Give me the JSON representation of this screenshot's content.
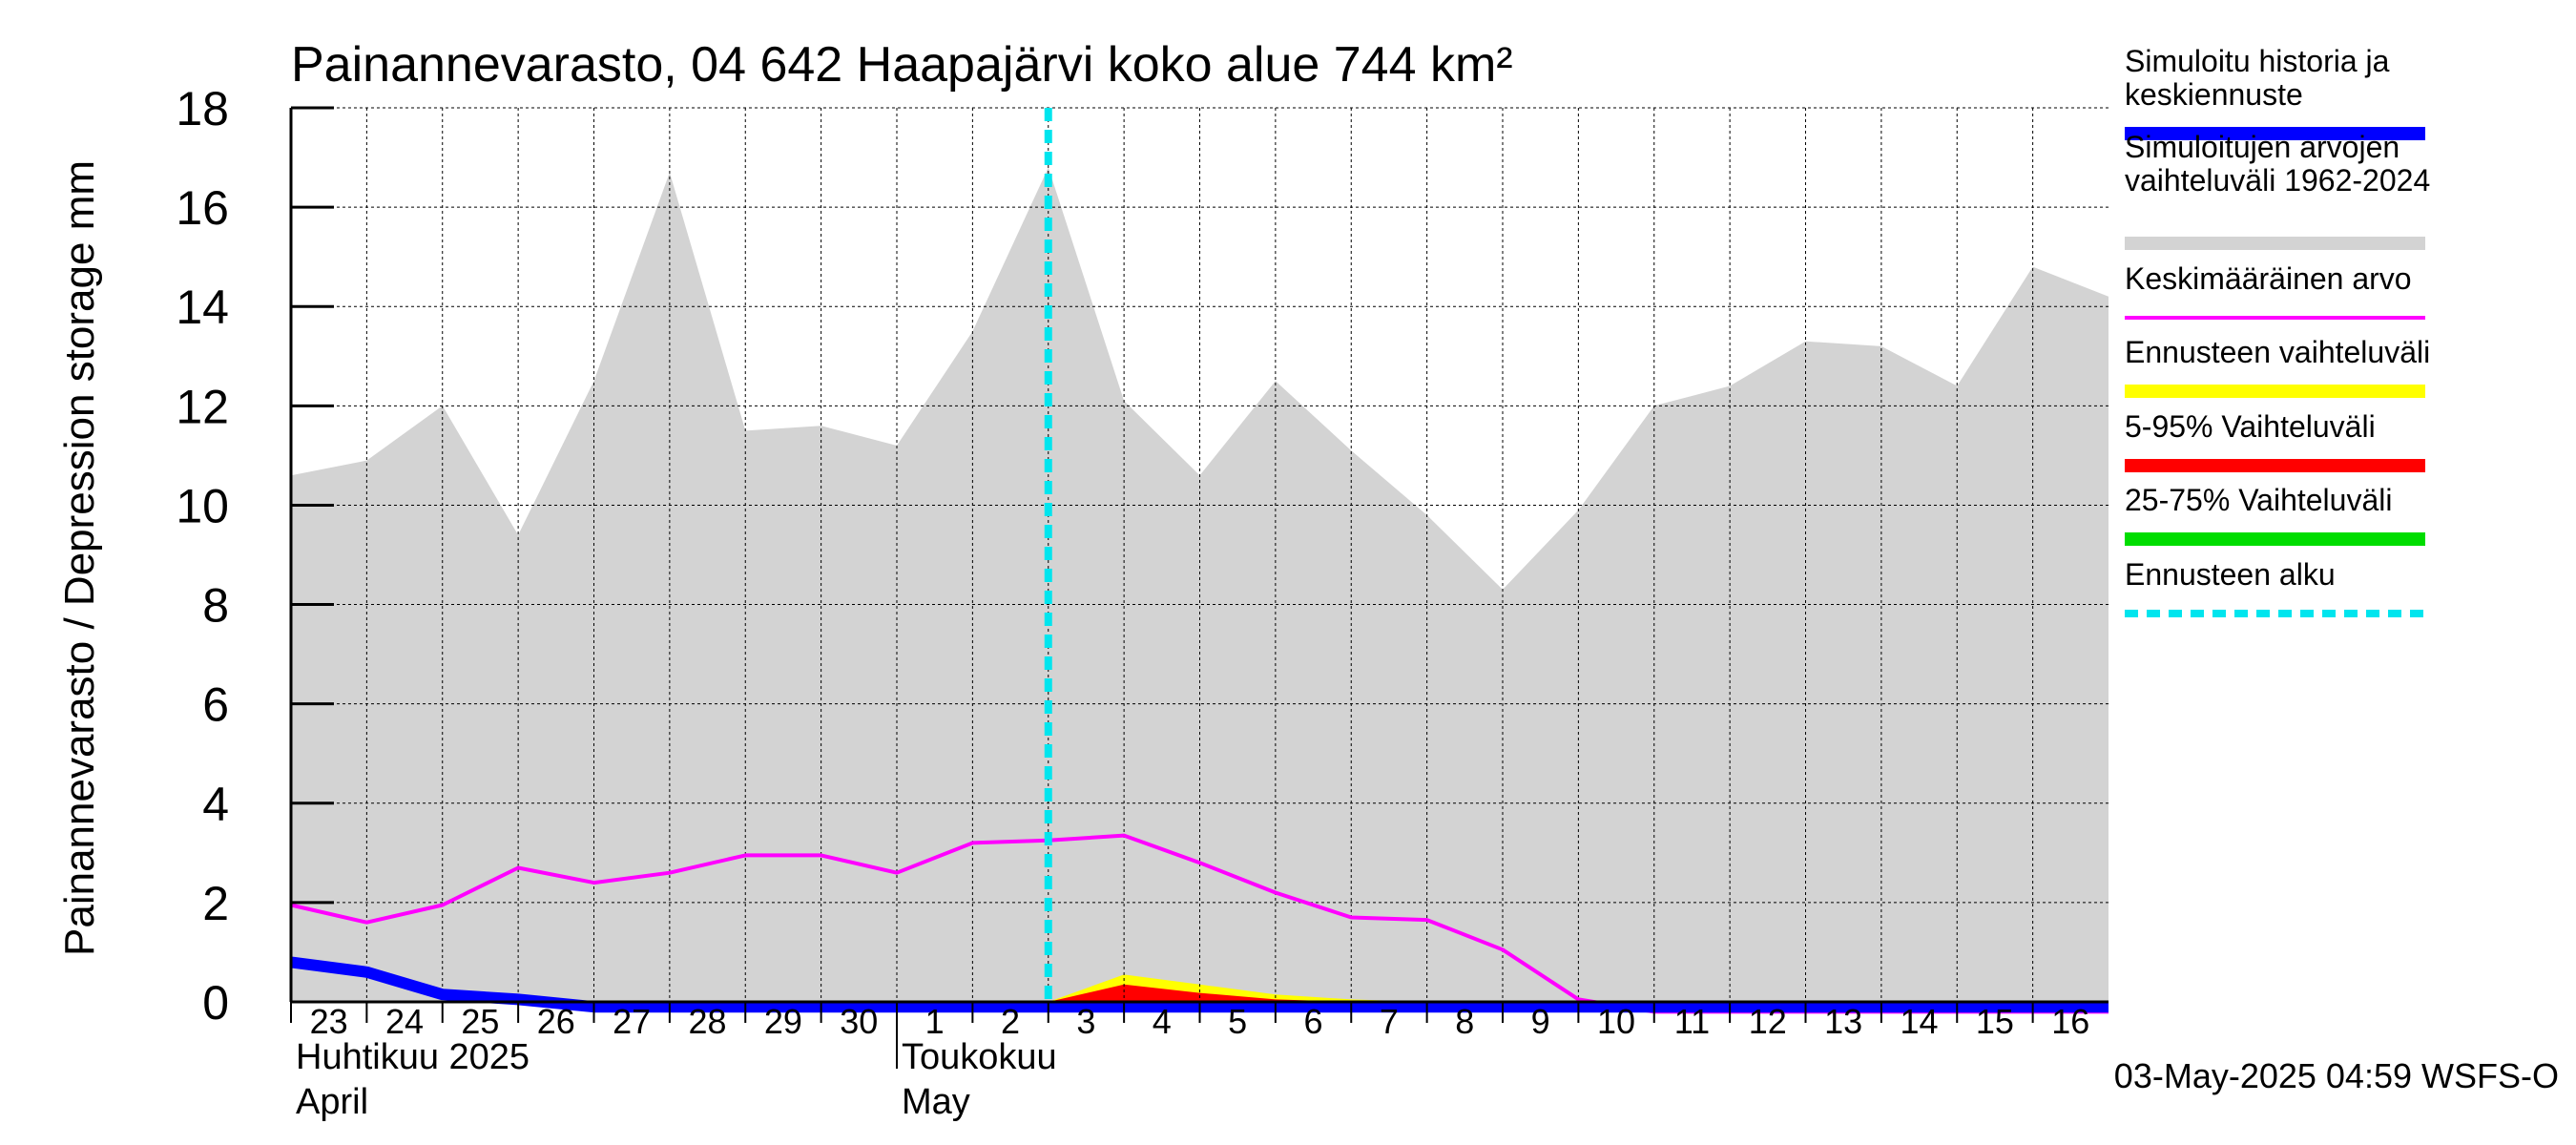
{
  "chart_data": {
    "type": "area",
    "title": "Painannevarasto, 04 642 Haapajärvi koko alue 744 km²",
    "ylabel": "Painannevarasto / Depression storage    mm",
    "ylim": [
      0,
      18
    ],
    "y_ticks": [
      "0",
      "2",
      "4",
      "6",
      "8",
      "10",
      "12",
      "14",
      "16",
      "18"
    ],
    "grid": true,
    "legend_position": "right",
    "x": [
      "2025-04-23",
      "2025-04-24",
      "2025-04-25",
      "2025-04-26",
      "2025-04-27",
      "2025-04-28",
      "2025-04-29",
      "2025-04-30",
      "2025-05-01",
      "2025-05-02",
      "2025-05-03",
      "2025-05-04",
      "2025-05-05",
      "2025-05-06",
      "2025-05-07",
      "2025-05-08",
      "2025-05-09",
      "2025-05-10",
      "2025-05-11",
      "2025-05-12",
      "2025-05-13",
      "2025-05-14",
      "2025-05-15",
      "2025-05-16",
      "2025-05-17"
    ],
    "x_tick_labels": [
      "23",
      "24",
      "25",
      "26",
      "27",
      "28",
      "29",
      "30",
      "1",
      "2",
      "3",
      "4",
      "5",
      "6",
      "7",
      "8",
      "9",
      "10",
      "11",
      "12",
      "13",
      "14",
      "15",
      "16"
    ],
    "month_labels": [
      {
        "line1": "Huhtikuu  2025",
        "line2": "April"
      },
      {
        "line1": "Toukokuu",
        "line2": "May"
      }
    ],
    "forecast_start": "2025-05-03",
    "series": [
      {
        "name": "Simuloitujen arvojen vaihteluväli 1962-2024",
        "kind": "band",
        "color": "#d3d3d3",
        "lower": [
          0,
          0,
          0,
          0,
          0,
          0,
          0,
          0,
          0,
          0,
          0,
          0,
          0,
          0,
          0,
          0,
          0,
          0,
          0,
          0,
          0,
          0,
          0,
          0,
          0
        ],
        "upper": [
          10.6,
          10.9,
          12.0,
          9.4,
          12.5,
          16.7,
          11.5,
          11.6,
          11.2,
          13.5,
          16.8,
          12.1,
          10.6,
          12.5,
          11.1,
          9.8,
          8.3,
          9.9,
          12.0,
          12.4,
          13.3,
          13.2,
          12.4,
          14.8,
          14.2
        ]
      },
      {
        "name": "Ennusteen vaihteluväli",
        "kind": "band",
        "color": "#ffff00",
        "lower": [
          0,
          0,
          0,
          0,
          0,
          0,
          0,
          0,
          0,
          0,
          0,
          0,
          0,
          0,
          0,
          0,
          0,
          0,
          0,
          0,
          0,
          0,
          0,
          0,
          0
        ],
        "upper": [
          0,
          0,
          0,
          0,
          0,
          0,
          0,
          0,
          0,
          0,
          0,
          0.55,
          0.35,
          0.15,
          0.05,
          0,
          0,
          0,
          0,
          0,
          0,
          0,
          0,
          0,
          0
        ]
      },
      {
        "name": "5-95% Vaihteluväli",
        "kind": "band",
        "color": "#ff0000",
        "lower": [
          0,
          0,
          0,
          0,
          0,
          0,
          0,
          0,
          0,
          0,
          0,
          0,
          0,
          0,
          0,
          0,
          0,
          0,
          0,
          0,
          0,
          0,
          0,
          0,
          0
        ],
        "upper": [
          0,
          0,
          0,
          0,
          0,
          0,
          0,
          0,
          0,
          0,
          0,
          0.35,
          0.18,
          0.05,
          0,
          0,
          0,
          0,
          0,
          0,
          0,
          0,
          0,
          0,
          0
        ]
      },
      {
        "name": "25-75% Vaihteluväli",
        "kind": "band",
        "color": "#00dd00",
        "lower": [
          0,
          0,
          0,
          0,
          0,
          0,
          0,
          0,
          0,
          0,
          0,
          0,
          0,
          0,
          0,
          0,
          0,
          0,
          0,
          0,
          0,
          0,
          0,
          0,
          0
        ],
        "upper": [
          0,
          0,
          0,
          0,
          0,
          0,
          0,
          0,
          0,
          0,
          0,
          0,
          0,
          0,
          0,
          0,
          0,
          0,
          0,
          0,
          0,
          0,
          0,
          0,
          0
        ]
      },
      {
        "name": "Keskimääräinen arvo",
        "kind": "line",
        "color": "#ff00ff",
        "values": [
          1.95,
          1.6,
          1.95,
          2.7,
          2.4,
          2.6,
          2.95,
          2.95,
          2.6,
          3.2,
          3.25,
          3.35,
          2.8,
          2.2,
          1.7,
          1.65,
          1.05,
          0.05,
          -0.2,
          -0.2,
          -0.2,
          -0.2,
          -0.2,
          -0.2,
          -0.2
        ]
      },
      {
        "name": "Simuloitu historia ja keskiennuste",
        "kind": "line",
        "color": "#0000ff",
        "values": [
          0.8,
          0.6,
          0.15,
          0.05,
          -0.1,
          -0.1,
          -0.1,
          -0.1,
          -0.1,
          -0.1,
          -0.1,
          -0.1,
          -0.1,
          -0.1,
          -0.1,
          -0.1,
          -0.1,
          -0.1,
          -0.1,
          -0.1,
          -0.1,
          -0.1,
          -0.1,
          -0.1,
          -0.1
        ]
      }
    ],
    "legend": [
      {
        "label": "Simuloitu historia ja keskiennuste",
        "color": "#0000ff",
        "style": "solid"
      },
      {
        "label": "Simuloitujen arvojen vaihteluväli 1962-2024",
        "color": "#d3d3d3",
        "style": "solid"
      },
      {
        "label": "Keskimääräinen arvo",
        "color": "#ff00ff",
        "style": "thin"
      },
      {
        "label": "Ennusteen vaihteluväli",
        "color": "#ffff00",
        "style": "solid"
      },
      {
        "label": "5-95% Vaihteluväli",
        "color": "#ff0000",
        "style": "solid"
      },
      {
        "label": "25-75% Vaihteluväli",
        "color": "#00dd00",
        "style": "solid"
      },
      {
        "label": "Ennusteen alku",
        "color": "#00e5ee",
        "style": "dashed"
      }
    ],
    "timestamp": "03-May-2025 04:59 WSFS-O"
  }
}
